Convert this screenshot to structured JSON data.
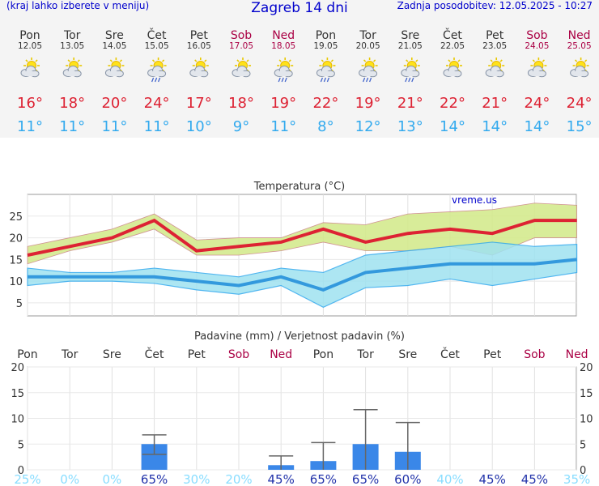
{
  "header": {
    "menu_hint": "(kraj lahko izberete v meniju)",
    "title": "Zagreb 14 dni",
    "last_update": "Zadnja posodobitev: 12.05.2025 - 10:27"
  },
  "days": [
    {
      "name": "Pon",
      "date": "12.05",
      "weekend": false,
      "icon": "partly-cloudy-icon",
      "tmax": "16°",
      "tmin": "11°"
    },
    {
      "name": "Tor",
      "date": "13.05",
      "weekend": false,
      "icon": "partly-cloudy-icon",
      "tmax": "18°",
      "tmin": "11°"
    },
    {
      "name": "Sre",
      "date": "14.05",
      "weekend": false,
      "icon": "partly-cloudy-icon",
      "tmax": "20°",
      "tmin": "11°"
    },
    {
      "name": "Čet",
      "date": "15.05",
      "weekend": false,
      "icon": "sun-cloud-rain-icon",
      "tmax": "24°",
      "tmin": "11°"
    },
    {
      "name": "Pet",
      "date": "16.05",
      "weekend": false,
      "icon": "partly-cloudy-icon",
      "tmax": "17°",
      "tmin": "10°"
    },
    {
      "name": "Sob",
      "date": "17.05",
      "weekend": true,
      "icon": "partly-cloudy-icon",
      "tmax": "18°",
      "tmin": "9°"
    },
    {
      "name": "Ned",
      "date": "18.05",
      "weekend": true,
      "icon": "sun-cloud-rain-icon",
      "tmax": "19°",
      "tmin": "11°"
    },
    {
      "name": "Pon",
      "date": "19.05",
      "weekend": false,
      "icon": "sun-cloud-rain-icon",
      "tmax": "22°",
      "tmin": "8°"
    },
    {
      "name": "Tor",
      "date": "20.05",
      "weekend": false,
      "icon": "sun-cloud-rain-icon",
      "tmax": "19°",
      "tmin": "12°"
    },
    {
      "name": "Sre",
      "date": "21.05",
      "weekend": false,
      "icon": "sun-cloud-rain-icon",
      "tmax": "21°",
      "tmin": "13°"
    },
    {
      "name": "Čet",
      "date": "22.05",
      "weekend": false,
      "icon": "partly-cloudy-icon",
      "tmax": "22°",
      "tmin": "14°"
    },
    {
      "name": "Pet",
      "date": "23.05",
      "weekend": false,
      "icon": "partly-cloudy-icon",
      "tmax": "21°",
      "tmin": "14°"
    },
    {
      "name": "Sob",
      "date": "24.05",
      "weekend": true,
      "icon": "partly-cloudy-icon",
      "tmax": "24°",
      "tmin": "14°"
    },
    {
      "name": "Ned",
      "date": "25.05",
      "weekend": true,
      "icon": "partly-cloudy-icon",
      "tmax": "24°",
      "tmin": "15°"
    }
  ],
  "colors": {
    "tmax": "#dd2233",
    "tmin": "#33aaee",
    "weekend": "#aa0044",
    "weekday": "#333333",
    "band_max": "#d4ea8e",
    "band_max_stroke": "#cc8888",
    "band_min": "#9fe2f0",
    "band_min_stroke": "#33aaee",
    "line_min": "#3399dd",
    "bar": "#3a87e8",
    "prob_low": "#88ddff",
    "prob_high": "#2233aa"
  },
  "chart_data": [
    {
      "type": "line",
      "title": "Temperatura (°C)",
      "watermark": "vreme.us",
      "yticks": [
        5,
        10,
        15,
        20,
        25
      ],
      "ylim": [
        2,
        30
      ],
      "grid": true,
      "series": [
        {
          "values": [
            16,
            18,
            20,
            24,
            17,
            18,
            19,
            22,
            19,
            21,
            22,
            21,
            24,
            24
          ]
        },
        {
          "values": [
            11,
            11,
            11,
            11,
            10,
            9,
            11,
            8,
            12,
            13,
            14,
            14,
            14,
            15
          ]
        },
        {
          "values": [
            18,
            20,
            22,
            25.5,
            19.5,
            20,
            20,
            23.5,
            23,
            25.5,
            26,
            26.5,
            28,
            27.5
          ]
        },
        {
          "values": [
            14,
            17,
            19,
            22,
            16,
            16,
            17,
            19,
            17,
            17,
            18,
            16,
            20,
            20
          ]
        },
        {
          "values": [
            13,
            12,
            12,
            13,
            12,
            11,
            13,
            12,
            16,
            17,
            18,
            19,
            18,
            18.5
          ]
        },
        {
          "values": [
            9,
            10,
            10,
            9.5,
            8,
            7,
            9,
            4,
            8.5,
            9,
            10.5,
            9,
            10.5,
            12
          ]
        }
      ]
    },
    {
      "type": "bar",
      "title": "Padavine (mm) / Verjetnost padavin (%)",
      "ylim": [
        0,
        20
      ],
      "yticks": [
        0,
        5,
        10,
        15,
        20
      ],
      "grid": true,
      "values": [
        0,
        0,
        0,
        5,
        0,
        0,
        0.9,
        1.7,
        5,
        3.5,
        0,
        0,
        0,
        0
      ],
      "error_bars": [
        null,
        null,
        null,
        [
          3,
          6.8
        ],
        null,
        null,
        [
          0,
          2.7
        ],
        [
          0,
          5.3
        ],
        [
          0,
          11.7
        ],
        [
          0,
          9.2
        ],
        null,
        null,
        null,
        null
      ],
      "probabilities": [
        "25%",
        "0%",
        "0%",
        "65%",
        "30%",
        "20%",
        "45%",
        "65%",
        "65%",
        "60%",
        "40%",
        "45%",
        "45%",
        "35%"
      ]
    }
  ]
}
